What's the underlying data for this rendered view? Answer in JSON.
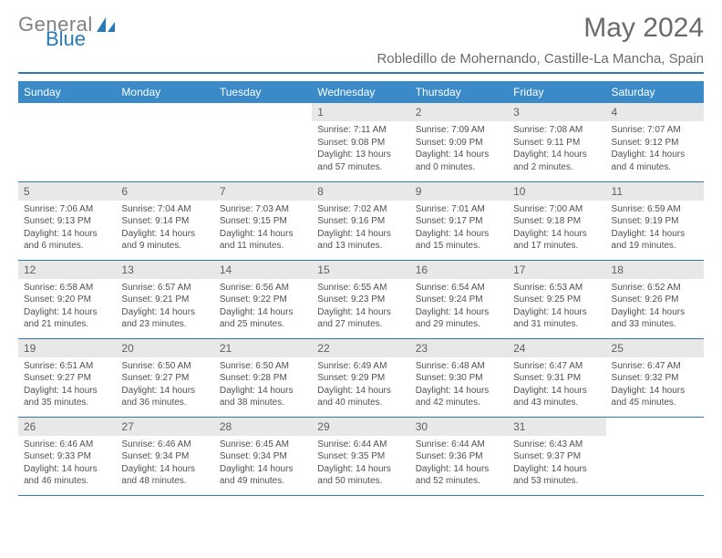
{
  "logo": {
    "text1": "General",
    "text2": "Blue"
  },
  "title": "May 2024",
  "subtitle": "Robledillo de Mohernando, Castille-La Mancha, Spain",
  "colors": {
    "header_bg": "#3a8ac8",
    "header_text": "#ffffff",
    "divider": "#2a7ab8",
    "daynum_bg": "#e8e8e8",
    "text": "#505050",
    "title_color": "#6a6a6a"
  },
  "weekdays": [
    "Sunday",
    "Monday",
    "Tuesday",
    "Wednesday",
    "Thursday",
    "Friday",
    "Saturday"
  ],
  "weeks": [
    [
      null,
      null,
      null,
      {
        "n": "1",
        "sr": "7:11 AM",
        "ss": "9:08 PM",
        "dl": "13 hours and 57 minutes."
      },
      {
        "n": "2",
        "sr": "7:09 AM",
        "ss": "9:09 PM",
        "dl": "14 hours and 0 minutes."
      },
      {
        "n": "3",
        "sr": "7:08 AM",
        "ss": "9:11 PM",
        "dl": "14 hours and 2 minutes."
      },
      {
        "n": "4",
        "sr": "7:07 AM",
        "ss": "9:12 PM",
        "dl": "14 hours and 4 minutes."
      }
    ],
    [
      {
        "n": "5",
        "sr": "7:06 AM",
        "ss": "9:13 PM",
        "dl": "14 hours and 6 minutes."
      },
      {
        "n": "6",
        "sr": "7:04 AM",
        "ss": "9:14 PM",
        "dl": "14 hours and 9 minutes."
      },
      {
        "n": "7",
        "sr": "7:03 AM",
        "ss": "9:15 PM",
        "dl": "14 hours and 11 minutes."
      },
      {
        "n": "8",
        "sr": "7:02 AM",
        "ss": "9:16 PM",
        "dl": "14 hours and 13 minutes."
      },
      {
        "n": "9",
        "sr": "7:01 AM",
        "ss": "9:17 PM",
        "dl": "14 hours and 15 minutes."
      },
      {
        "n": "10",
        "sr": "7:00 AM",
        "ss": "9:18 PM",
        "dl": "14 hours and 17 minutes."
      },
      {
        "n": "11",
        "sr": "6:59 AM",
        "ss": "9:19 PM",
        "dl": "14 hours and 19 minutes."
      }
    ],
    [
      {
        "n": "12",
        "sr": "6:58 AM",
        "ss": "9:20 PM",
        "dl": "14 hours and 21 minutes."
      },
      {
        "n": "13",
        "sr": "6:57 AM",
        "ss": "9:21 PM",
        "dl": "14 hours and 23 minutes."
      },
      {
        "n": "14",
        "sr": "6:56 AM",
        "ss": "9:22 PM",
        "dl": "14 hours and 25 minutes."
      },
      {
        "n": "15",
        "sr": "6:55 AM",
        "ss": "9:23 PM",
        "dl": "14 hours and 27 minutes."
      },
      {
        "n": "16",
        "sr": "6:54 AM",
        "ss": "9:24 PM",
        "dl": "14 hours and 29 minutes."
      },
      {
        "n": "17",
        "sr": "6:53 AM",
        "ss": "9:25 PM",
        "dl": "14 hours and 31 minutes."
      },
      {
        "n": "18",
        "sr": "6:52 AM",
        "ss": "9:26 PM",
        "dl": "14 hours and 33 minutes."
      }
    ],
    [
      {
        "n": "19",
        "sr": "6:51 AM",
        "ss": "9:27 PM",
        "dl": "14 hours and 35 minutes."
      },
      {
        "n": "20",
        "sr": "6:50 AM",
        "ss": "9:27 PM",
        "dl": "14 hours and 36 minutes."
      },
      {
        "n": "21",
        "sr": "6:50 AM",
        "ss": "9:28 PM",
        "dl": "14 hours and 38 minutes."
      },
      {
        "n": "22",
        "sr": "6:49 AM",
        "ss": "9:29 PM",
        "dl": "14 hours and 40 minutes."
      },
      {
        "n": "23",
        "sr": "6:48 AM",
        "ss": "9:30 PM",
        "dl": "14 hours and 42 minutes."
      },
      {
        "n": "24",
        "sr": "6:47 AM",
        "ss": "9:31 PM",
        "dl": "14 hours and 43 minutes."
      },
      {
        "n": "25",
        "sr": "6:47 AM",
        "ss": "9:32 PM",
        "dl": "14 hours and 45 minutes."
      }
    ],
    [
      {
        "n": "26",
        "sr": "6:46 AM",
        "ss": "9:33 PM",
        "dl": "14 hours and 46 minutes."
      },
      {
        "n": "27",
        "sr": "6:46 AM",
        "ss": "9:34 PM",
        "dl": "14 hours and 48 minutes."
      },
      {
        "n": "28",
        "sr": "6:45 AM",
        "ss": "9:34 PM",
        "dl": "14 hours and 49 minutes."
      },
      {
        "n": "29",
        "sr": "6:44 AM",
        "ss": "9:35 PM",
        "dl": "14 hours and 50 minutes."
      },
      {
        "n": "30",
        "sr": "6:44 AM",
        "ss": "9:36 PM",
        "dl": "14 hours and 52 minutes."
      },
      {
        "n": "31",
        "sr": "6:43 AM",
        "ss": "9:37 PM",
        "dl": "14 hours and 53 minutes."
      },
      null
    ]
  ],
  "labels": {
    "sunrise": "Sunrise:",
    "sunset": "Sunset:",
    "daylight": "Daylight:"
  }
}
